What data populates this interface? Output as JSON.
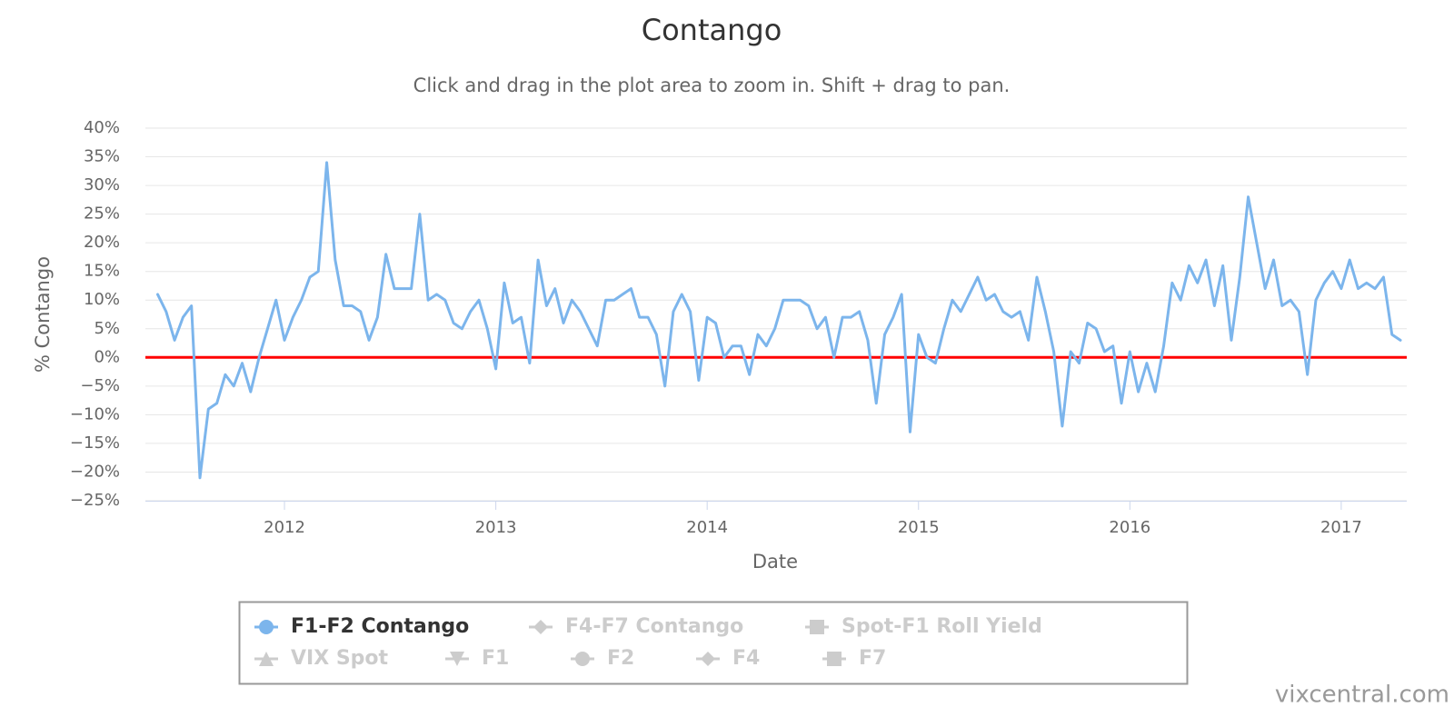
{
  "chart_data": {
    "type": "line",
    "title": "Contango",
    "subtitle": "Click and drag in the plot area to zoom in. Shift + drag to pan.",
    "x_label": "Date",
    "y_label": "% Contango",
    "credit": "vixcentral.com",
    "xlim": [
      2011.342,
      2017.31
    ],
    "xticks": [
      2012,
      2013,
      2014,
      2015,
      2016,
      2017
    ],
    "ylim": [
      -25,
      40
    ],
    "yticks": [
      {
        "value": -25,
        "label": "−25%"
      },
      {
        "value": -20,
        "label": "−20%"
      },
      {
        "value": -15,
        "label": "−15%"
      },
      {
        "value": -10,
        "label": "−10%"
      },
      {
        "value": -5,
        "label": "−5%"
      },
      {
        "value": 0,
        "label": "0%"
      },
      {
        "value": 5,
        "label": "5%"
      },
      {
        "value": 10,
        "label": "10%"
      },
      {
        "value": 15,
        "label": "15%"
      },
      {
        "value": 20,
        "label": "20%"
      },
      {
        "value": 25,
        "label": "25%"
      },
      {
        "value": 30,
        "label": "30%"
      },
      {
        "value": 35,
        "label": "35%"
      },
      {
        "value": 40,
        "label": "40%"
      }
    ],
    "grid": true,
    "plot_lines": [
      {
        "value": 0,
        "color": "#ff0000"
      }
    ],
    "x": [
      2011.4,
      2011.44,
      2011.48,
      2011.52,
      2011.56,
      2011.6,
      2011.64,
      2011.68,
      2011.72,
      2011.76,
      2011.8,
      2011.84,
      2011.88,
      2011.92,
      2011.96,
      2012,
      2012.04,
      2012.08,
      2012.12,
      2012.16,
      2012.2,
      2012.24,
      2012.28,
      2012.32,
      2012.36,
      2012.4,
      2012.44,
      2012.48,
      2012.52,
      2012.56,
      2012.6,
      2012.64,
      2012.68,
      2012.72,
      2012.76,
      2012.8,
      2012.84,
      2012.88,
      2012.92,
      2012.96,
      2013,
      2013.04,
      2013.08,
      2013.12,
      2013.16,
      2013.2,
      2013.24,
      2013.28,
      2013.32,
      2013.36,
      2013.4,
      2013.44,
      2013.48,
      2013.52,
      2013.56,
      2013.6,
      2013.64,
      2013.68,
      2013.72,
      2013.76,
      2013.8,
      2013.84,
      2013.88,
      2013.92,
      2013.96,
      2014,
      2014.04,
      2014.08,
      2014.12,
      2014.16,
      2014.2,
      2014.24,
      2014.28,
      2014.32,
      2014.36,
      2014.4,
      2014.44,
      2014.48,
      2014.52,
      2014.56,
      2014.6,
      2014.64,
      2014.68,
      2014.72,
      2014.76,
      2014.8,
      2014.84,
      2014.88,
      2014.92,
      2014.96,
      2015,
      2015.04,
      2015.08,
      2015.12,
      2015.16,
      2015.2,
      2015.24,
      2015.28,
      2015.32,
      2015.36,
      2015.4,
      2015.44,
      2015.48,
      2015.52,
      2015.56,
      2015.6,
      2015.64,
      2015.68,
      2015.72,
      2015.76,
      2015.8,
      2015.84,
      2015.88,
      2015.92,
      2015.96,
      2016,
      2016.04,
      2016.08,
      2016.12,
      2016.16,
      2016.2,
      2016.24,
      2016.28,
      2016.32,
      2016.36,
      2016.4,
      2016.44,
      2016.48,
      2016.52,
      2016.56,
      2016.6,
      2016.64,
      2016.68,
      2016.72,
      2016.76,
      2016.8,
      2016.84,
      2016.88,
      2016.92,
      2016.96,
      2017,
      2017.04,
      2017.08,
      2017.12,
      2017.16,
      2017.2,
      2017.24,
      2017.28
    ],
    "series": [
      {
        "name": "F1-F2 Contango",
        "color": "#7cb5ec",
        "values": [
          11,
          8,
          3,
          7,
          9,
          -21,
          -9,
          -8,
          -3,
          -5,
          -1,
          -6,
          0,
          5,
          10,
          3,
          7,
          10,
          14,
          15,
          34,
          17,
          9,
          9,
          8,
          3,
          7,
          18,
          12,
          12,
          12,
          25,
          10,
          11,
          10,
          6,
          5,
          8,
          10,
          5,
          -2,
          13,
          6,
          7,
          -1,
          17,
          9,
          12,
          6,
          10,
          8,
          5,
          2,
          10,
          10,
          11,
          12,
          7,
          7,
          4,
          -5,
          8,
          11,
          8,
          -4,
          7,
          6,
          0,
          2,
          2,
          -3,
          4,
          2,
          5,
          10,
          10,
          10,
          9,
          5,
          7,
          0,
          7,
          7,
          8,
          3,
          -8,
          4,
          7,
          11,
          -13,
          4,
          0,
          -1,
          5,
          10,
          8,
          11,
          14,
          10,
          11,
          8,
          7,
          8,
          3,
          14,
          8,
          1,
          -12,
          1,
          -1,
          6,
          5,
          1,
          2,
          -8,
          1,
          -6,
          -1,
          -6,
          2,
          13,
          10,
          16,
          13,
          17,
          9,
          16,
          3,
          14,
          28,
          20,
          12,
          17,
          9,
          10,
          8,
          -3,
          10,
          13,
          15,
          12,
          17,
          12,
          13,
          12,
          14,
          4,
          3
        ]
      }
    ],
    "legend_items": [
      {
        "name": "F1-F2 Contango",
        "symbol": "circle",
        "active": true
      },
      {
        "name": "F4-F7 Contango",
        "symbol": "diamond",
        "active": false
      },
      {
        "name": "Spot-F1 Roll Yield",
        "symbol": "square",
        "active": false
      },
      {
        "name": "VIX Spot",
        "symbol": "triangle",
        "active": false
      },
      {
        "name": "F1",
        "symbol": "triangle-down",
        "active": false
      },
      {
        "name": "F2",
        "symbol": "circle",
        "active": false
      },
      {
        "name": "F4",
        "symbol": "diamond",
        "active": false
      },
      {
        "name": "F7",
        "symbol": "square",
        "active": false
      }
    ]
  }
}
